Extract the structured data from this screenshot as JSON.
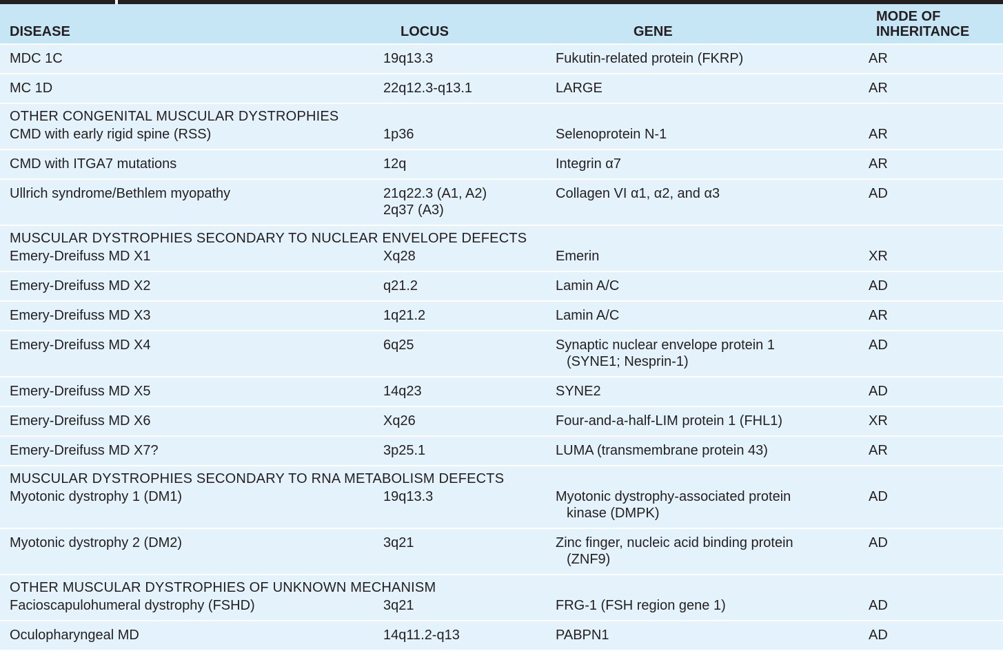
{
  "headers": {
    "disease": "DISEASE",
    "locus": "LOCUS",
    "gene": "GENE",
    "mode_line1": "MODE OF",
    "mode_line2": "INHERITANCE"
  },
  "rows": [
    {
      "type": "row",
      "disease": "MDC 1C",
      "locus": [
        "19q13.3"
      ],
      "gene": [
        "Fukutin-related protein (FKRP)"
      ],
      "mode": "AR"
    },
    {
      "type": "row",
      "disease": "MC 1D",
      "locus": [
        "22q12.3-q13.1"
      ],
      "gene": [
        "LARGE"
      ],
      "mode": "AR"
    },
    {
      "type": "section",
      "title": "OTHER CONGENITAL MUSCULAR DYSTROPHIES"
    },
    {
      "type": "row",
      "disease": "CMD with early rigid spine (RSS)",
      "locus": [
        "1p36"
      ],
      "gene": [
        "Selenoprotein N-1"
      ],
      "mode": "AR"
    },
    {
      "type": "row",
      "disease": "CMD with ITGA7 mutations",
      "locus": [
        "12q"
      ],
      "gene": [
        "Integrin α7"
      ],
      "mode": "AR"
    },
    {
      "type": "row",
      "disease": "Ullrich syndrome/Bethlem myopathy",
      "locus": [
        "21q22.3 (A1, A2)",
        "2q37 (A3)"
      ],
      "gene": [
        "Collagen VI α1, α2, and α3"
      ],
      "mode": "AD"
    },
    {
      "type": "section",
      "title": "MUSCULAR DYSTROPHIES SECONDARY TO NUCLEAR ENVELOPE DEFECTS"
    },
    {
      "type": "row",
      "disease": "Emery-Dreifuss MD X1",
      "locus": [
        "Xq28"
      ],
      "gene": [
        "Emerin"
      ],
      "mode": "XR"
    },
    {
      "type": "row",
      "disease": "Emery-Dreifuss MD X2",
      "locus": [
        "q21.2"
      ],
      "gene": [
        "Lamin A/C"
      ],
      "mode": "AD"
    },
    {
      "type": "row",
      "disease": "Emery-Dreifuss MD X3",
      "locus": [
        "1q21.2"
      ],
      "gene": [
        "Lamin A/C"
      ],
      "mode": "AR"
    },
    {
      "type": "row",
      "disease": "Emery-Dreifuss MD X4",
      "locus": [
        "6q25"
      ],
      "gene": [
        "Synaptic nuclear envelope protein 1",
        "(SYNE1; Nesprin-1)"
      ],
      "mode": "AD"
    },
    {
      "type": "row",
      "disease": "Emery-Dreifuss MD X5",
      "locus": [
        "14q23"
      ],
      "gene": [
        "SYNE2"
      ],
      "mode": "AD"
    },
    {
      "type": "row",
      "disease": "Emery-Dreifuss MD X6",
      "locus": [
        "Xq26"
      ],
      "gene": [
        "Four-and-a-half-LIM protein 1 (FHL1)"
      ],
      "mode": "XR"
    },
    {
      "type": "row",
      "disease": "Emery-Dreifuss MD X7?",
      "locus": [
        "3p25.1"
      ],
      "gene": [
        "LUMA (transmembrane protein 43)"
      ],
      "mode": "AR"
    },
    {
      "type": "section",
      "title": "MUSCULAR DYSTROPHIES SECONDARY TO RNA METABOLISM DEFECTS"
    },
    {
      "type": "row",
      "disease": "Myotonic dystrophy 1 (DM1)",
      "locus": [
        "19q13.3"
      ],
      "gene": [
        "Myotonic dystrophy-associated protein",
        "kinase (DMPK)"
      ],
      "mode": "AD"
    },
    {
      "type": "row",
      "disease": "Myotonic dystrophy 2 (DM2)",
      "locus": [
        "3q21"
      ],
      "gene": [
        "Zinc finger, nucleic acid binding protein",
        "(ZNF9)"
      ],
      "mode": "AD"
    },
    {
      "type": "section",
      "title": "OTHER MUSCULAR DYSTROPHIES OF UNKNOWN MECHANISM"
    },
    {
      "type": "row",
      "disease": "Facioscapulohumeral dystrophy (FSHD)",
      "locus": [
        "3q21"
      ],
      "gene": [
        "FRG-1 (FSH region gene 1)"
      ],
      "mode": "AD"
    },
    {
      "type": "row",
      "disease": "Oculopharyngeal MD",
      "locus": [
        "14q11.2-q13"
      ],
      "gene": [
        "PABPN1"
      ],
      "mode": "AD"
    }
  ]
}
